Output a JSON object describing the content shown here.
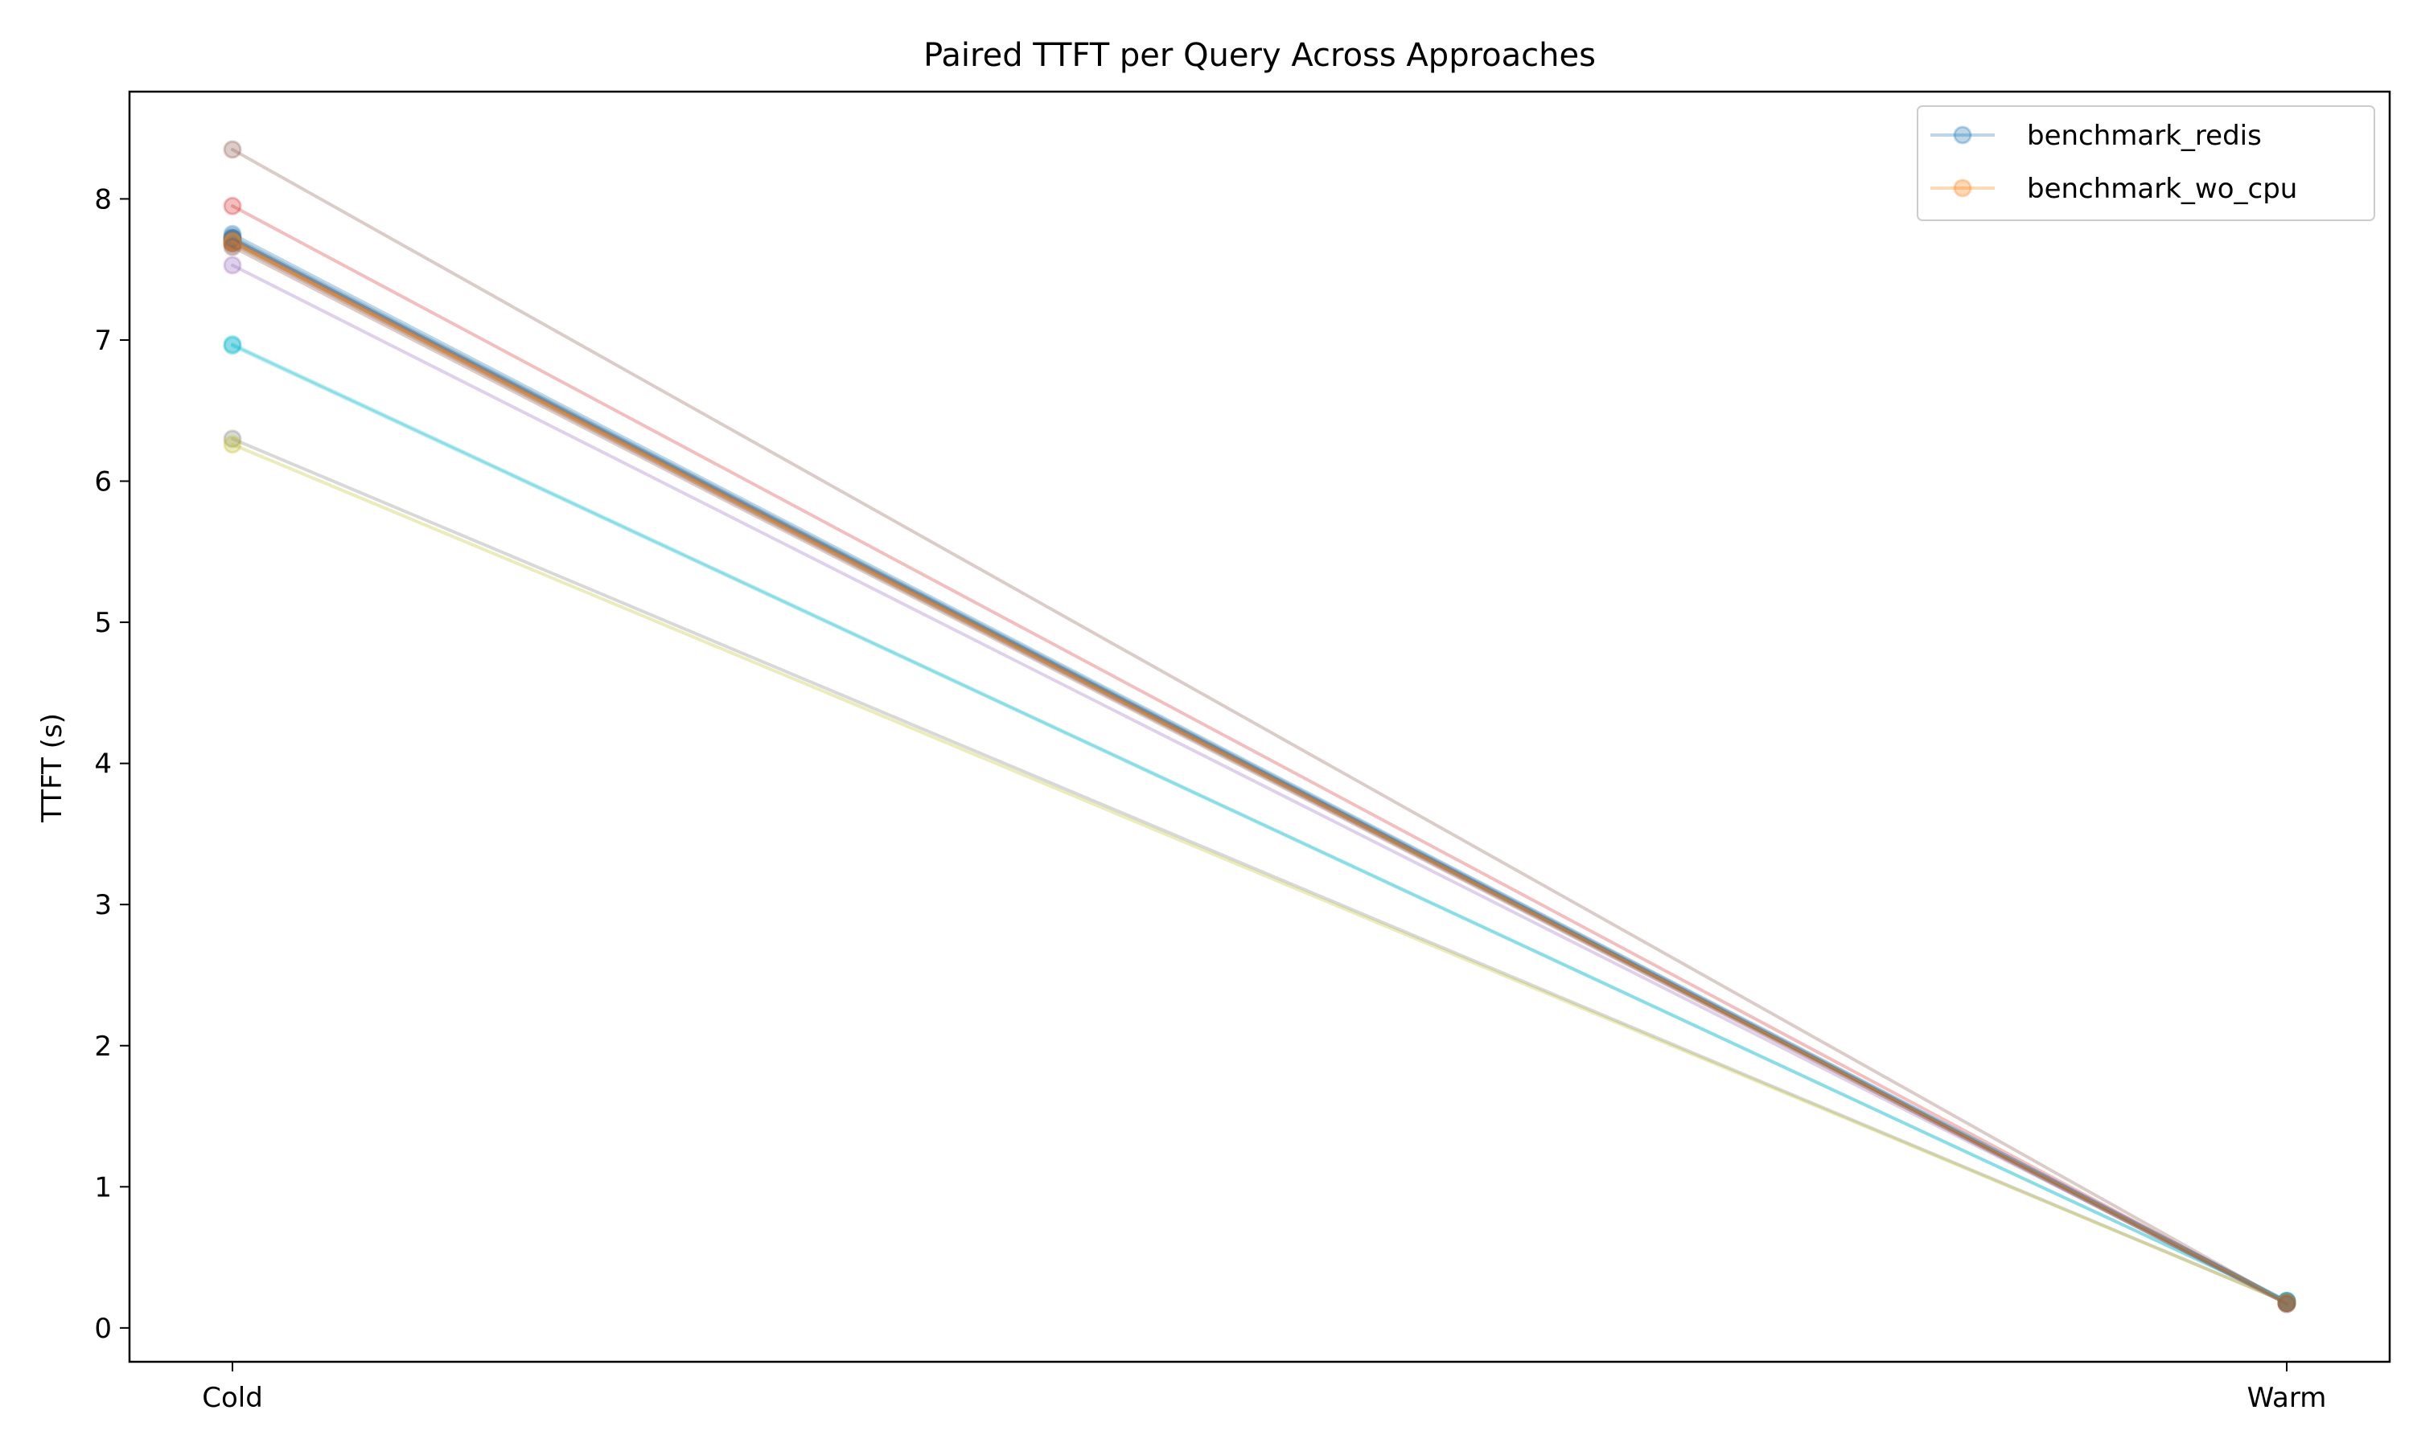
{
  "chart_data": {
    "type": "line",
    "title": "Paired TTFT per Query Across Approaches",
    "xlabel": "",
    "ylabel": "TTFT (s)",
    "categories": [
      "Cold",
      "Warm"
    ],
    "ylim": [
      -0.24,
      8.76
    ],
    "yticks": [
      0,
      1,
      2,
      3,
      4,
      5,
      6,
      7,
      8
    ],
    "grid": false,
    "legend_position": "top-right",
    "legend": [
      {
        "label": "benchmark_redis",
        "color": "#1f77b4"
      },
      {
        "label": "benchmark_wo_cpu",
        "color": "#ff7f0e"
      }
    ],
    "series": [
      {
        "values": [
          7.75,
          0.19
        ],
        "color": "#1f77b4"
      },
      {
        "values": [
          7.7,
          0.18
        ],
        "color": "#ff7f0e"
      },
      {
        "values": [
          7.72,
          0.18
        ],
        "color": "#2ca02c"
      },
      {
        "values": [
          7.95,
          0.18
        ],
        "color": "#d62728"
      },
      {
        "values": [
          7.53,
          0.18
        ],
        "color": "#9467bd"
      },
      {
        "values": [
          8.35,
          0.18
        ],
        "color": "#8c564b"
      },
      {
        "values": [
          7.69,
          0.18
        ],
        "color": "#e377c2"
      },
      {
        "values": [
          6.3,
          0.18
        ],
        "color": "#7f7f7f"
      },
      {
        "values": [
          6.26,
          0.18
        ],
        "color": "#bcbd22"
      },
      {
        "values": [
          6.97,
          0.19
        ],
        "color": "#17becf"
      },
      {
        "values": [
          7.73,
          0.19
        ],
        "color": "#1f77b4"
      },
      {
        "values": [
          7.71,
          0.18
        ],
        "color": "#ff7f0e"
      },
      {
        "values": [
          7.7,
          0.18
        ],
        "color": "#2ca02c"
      },
      {
        "values": [
          7.69,
          0.18
        ],
        "color": "#d62728"
      },
      {
        "values": [
          7.72,
          0.18
        ],
        "color": "#9467bd"
      },
      {
        "values": [
          7.68,
          0.17
        ],
        "color": "#8c564b"
      },
      {
        "values": [
          7.7,
          0.18
        ],
        "color": "#e377c2"
      },
      {
        "values": [
          7.71,
          0.18
        ],
        "color": "#7f7f7f"
      },
      {
        "values": [
          7.69,
          0.18
        ],
        "color": "#bcbd22"
      },
      {
        "values": [
          6.96,
          0.19
        ],
        "color": "#17becf"
      },
      {
        "values": [
          7.72,
          0.18
        ],
        "color": "#1f77b4"
      },
      {
        "values": [
          7.7,
          0.18
        ],
        "color": "#ff7f0e"
      },
      {
        "values": [
          7.66,
          0.17
        ],
        "color": "#8c564b"
      }
    ]
  }
}
